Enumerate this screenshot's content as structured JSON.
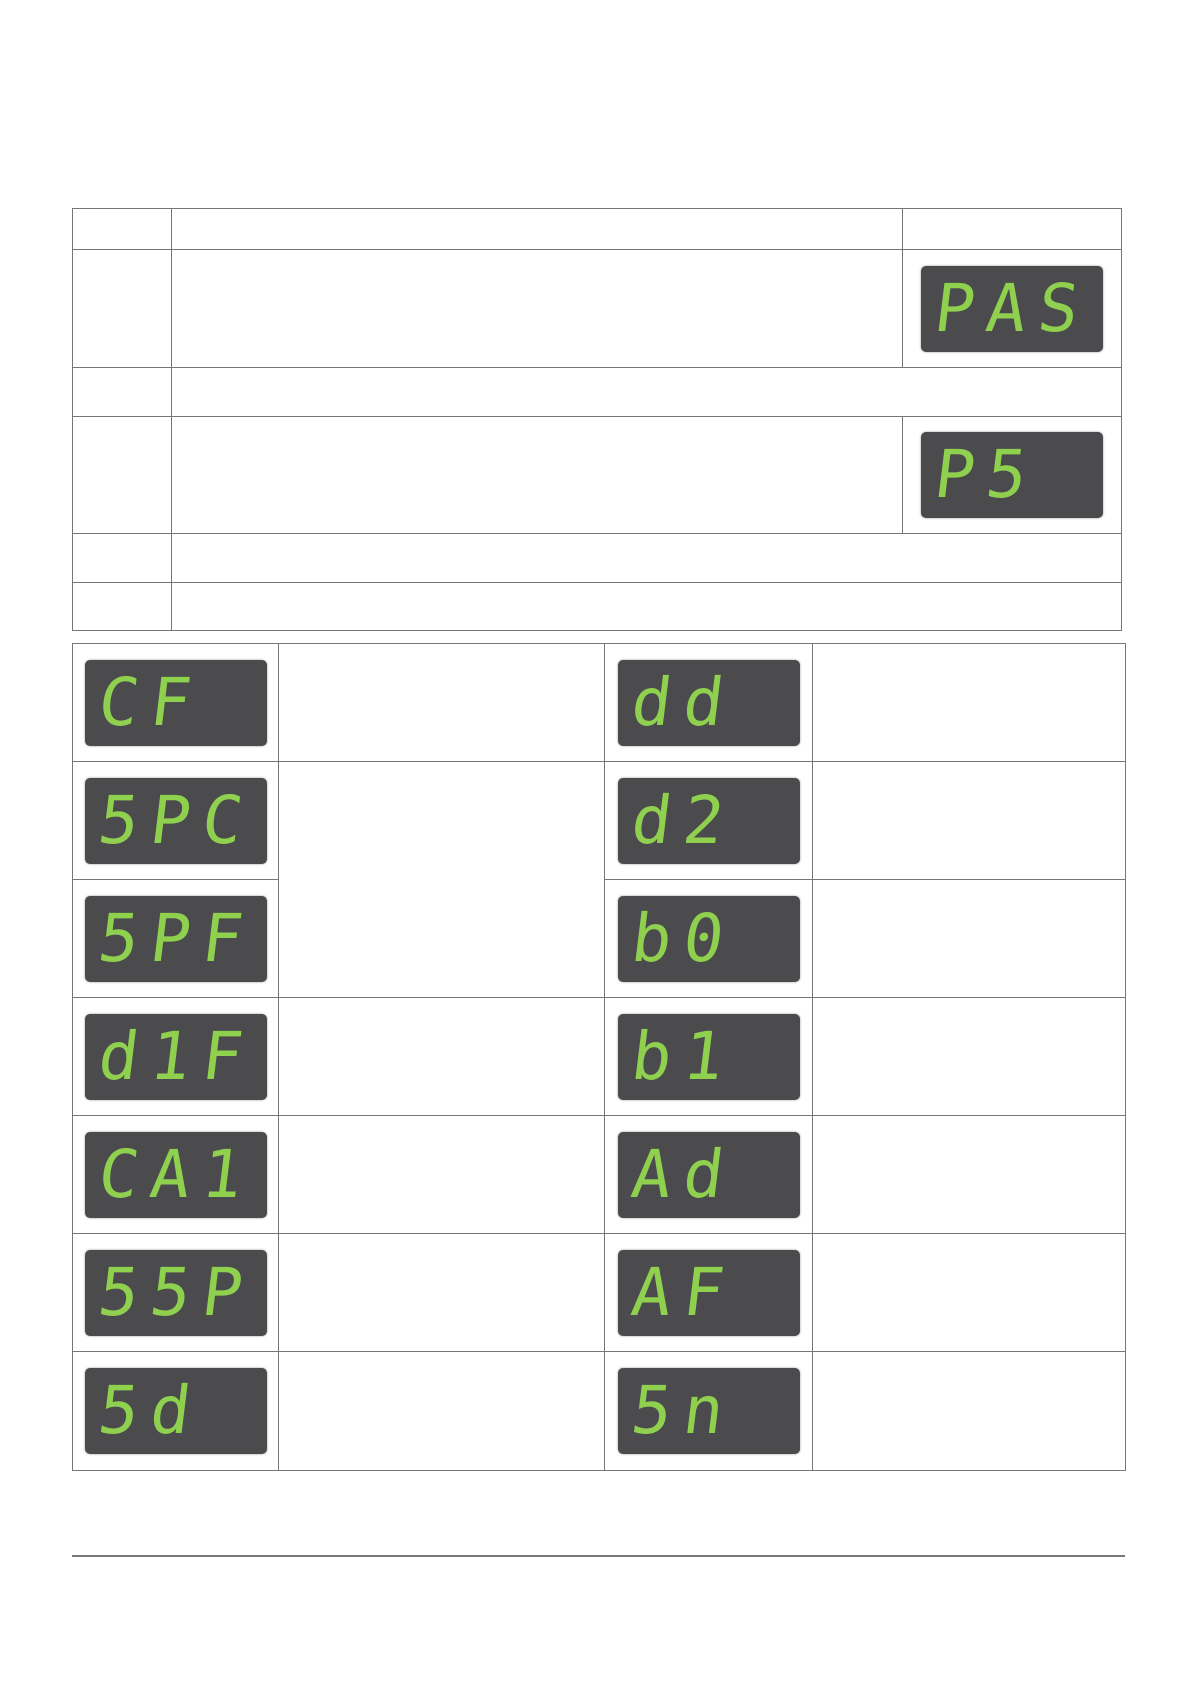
{
  "colors": {
    "lcd_background": "#4b4b4d",
    "lcd_segment": "#8fd14f",
    "rule": "#777777"
  },
  "parameter_table": {
    "displays": {
      "password": "PAS",
      "password_set": "P5"
    }
  },
  "code_grid": {
    "rows": [
      {
        "left": "CF",
        "right": "dd"
      },
      {
        "left": "5PC",
        "right": "d2"
      },
      {
        "left": "5PF",
        "right": "b0"
      },
      {
        "left": "d1F",
        "right": "b1"
      },
      {
        "left": "CA1",
        "right": "Ad"
      },
      {
        "left": "55P",
        "right": "AF"
      },
      {
        "left": "5d",
        "right": "5n"
      }
    ]
  }
}
